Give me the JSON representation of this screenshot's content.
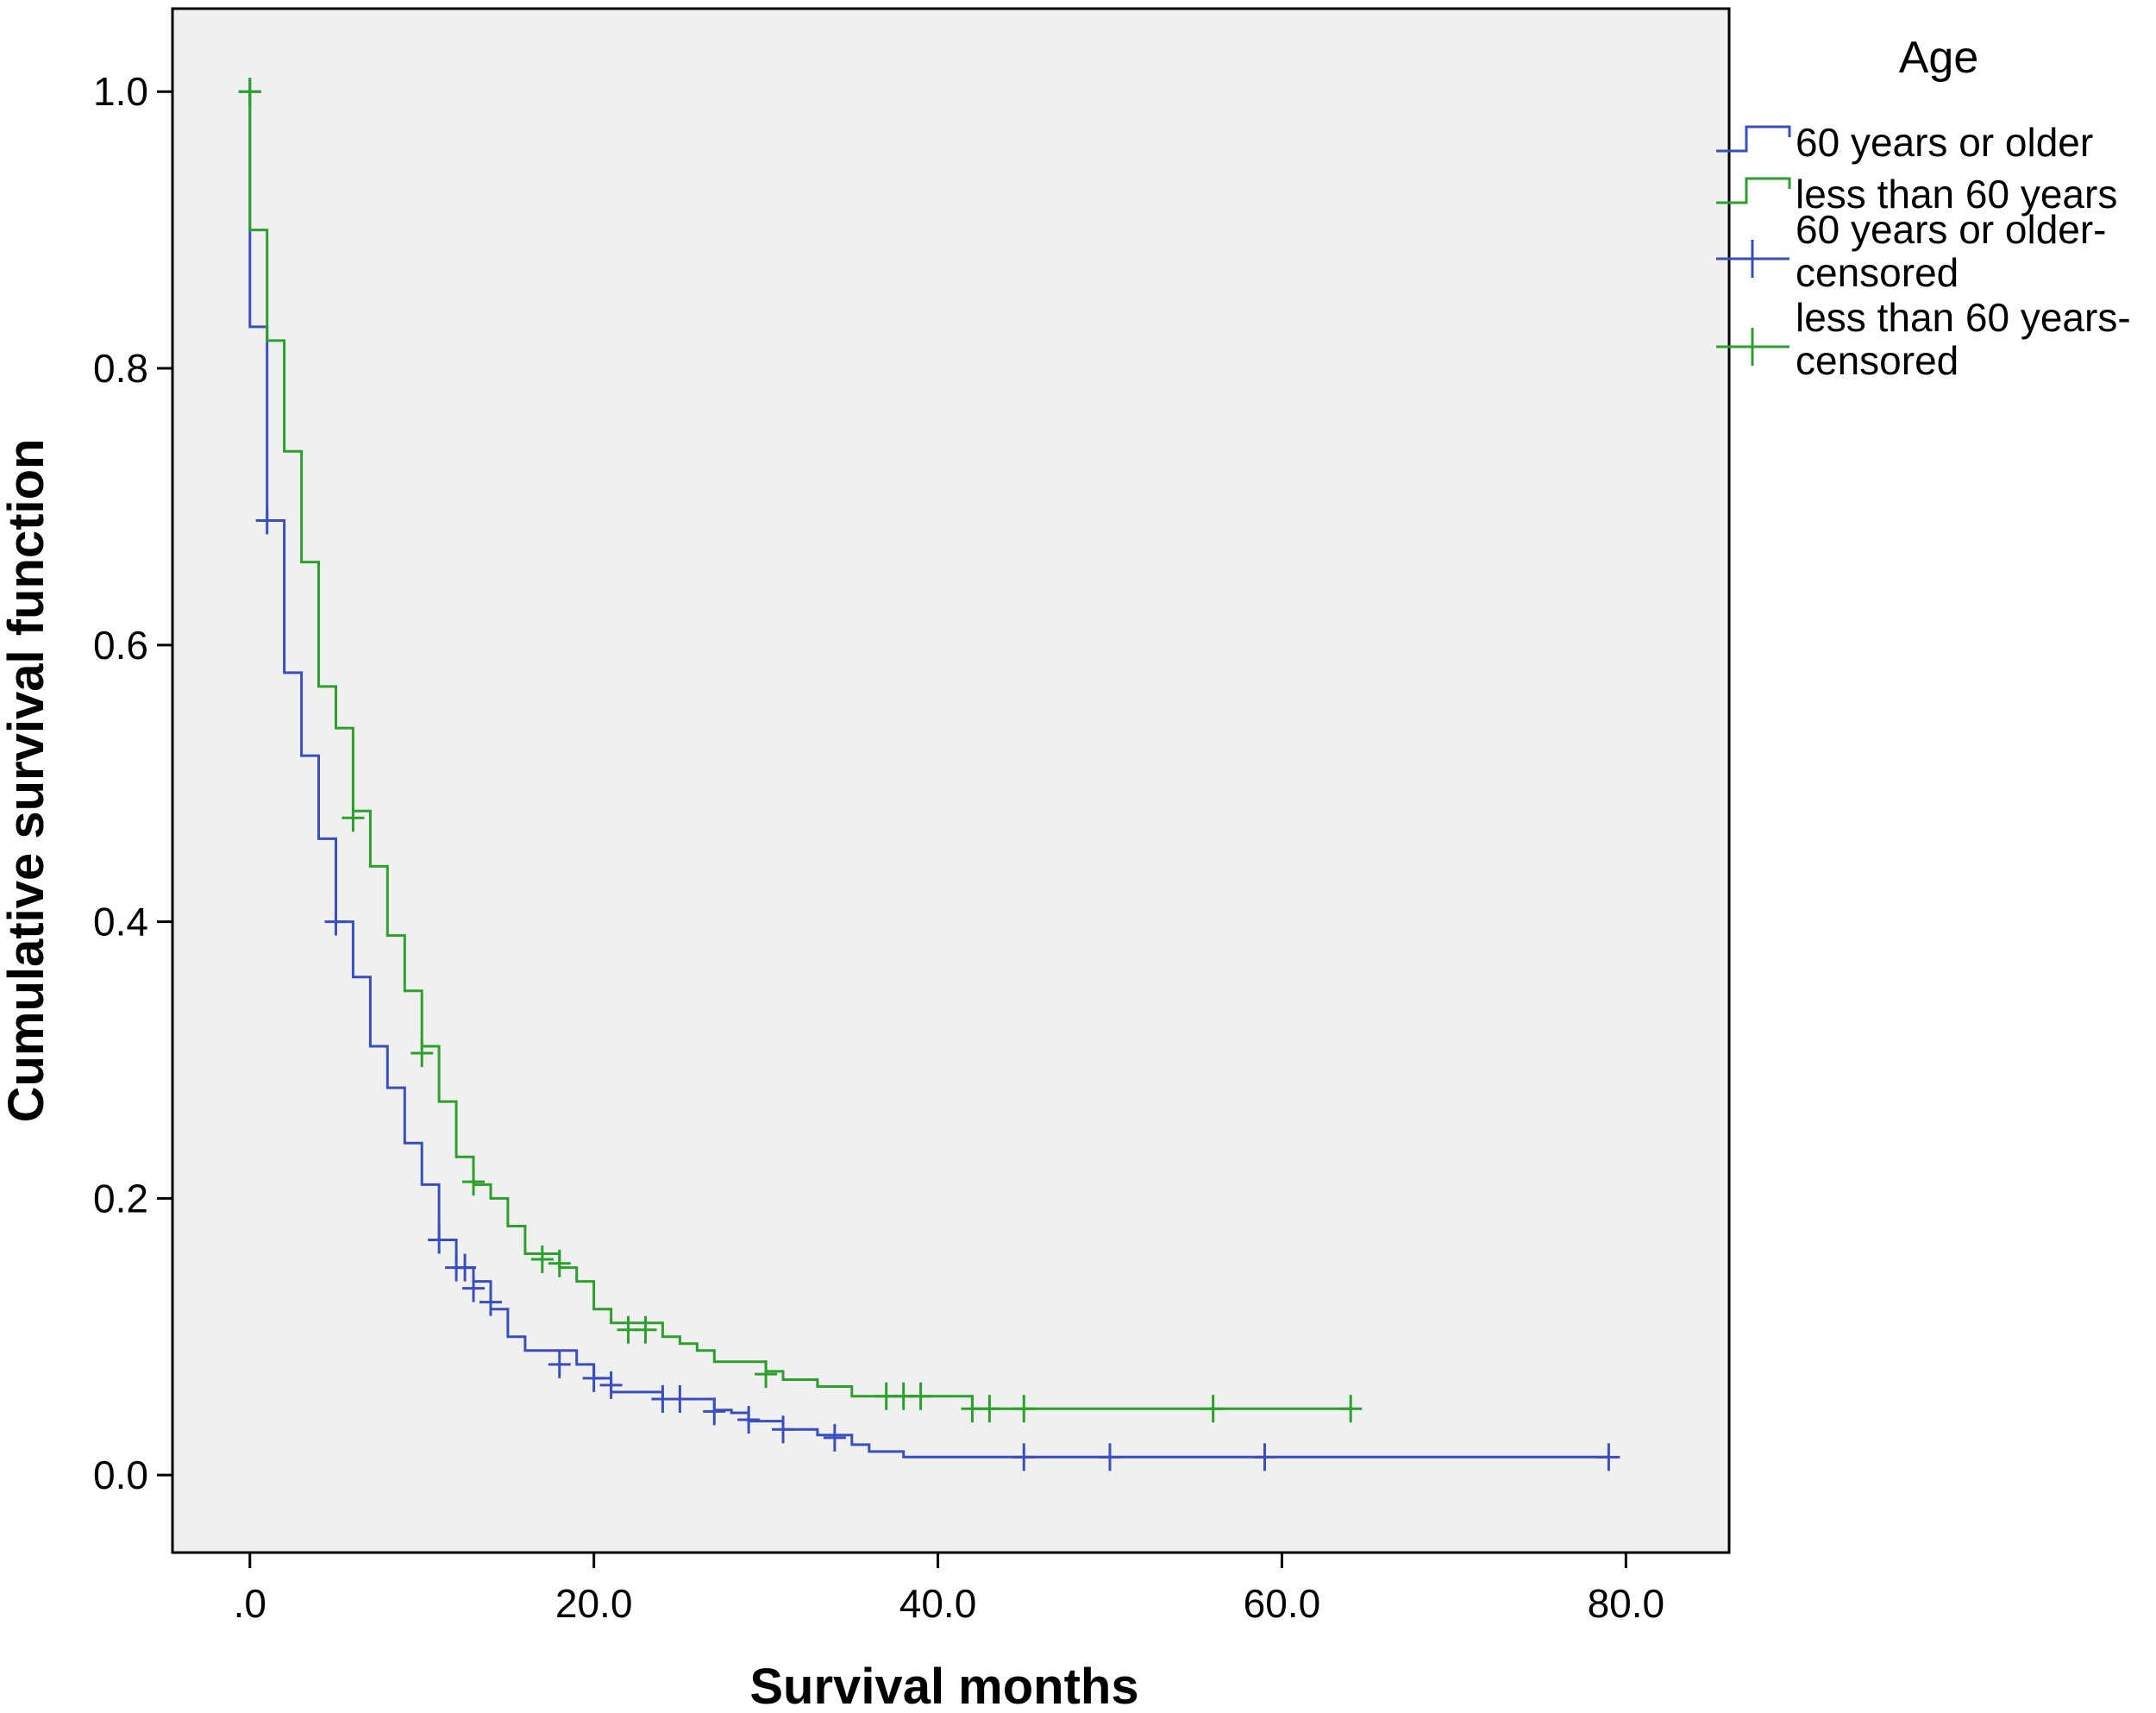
{
  "chart_data": {
    "type": "line",
    "subtype": "kaplan-meier step",
    "title": "",
    "xlabel": "Survival months",
    "ylabel": "Cumulative survival function",
    "xlim": [
      -4.5,
      86
    ],
    "ylim": [
      -0.056,
      1.06
    ],
    "x_ticks": [
      0,
      20,
      40,
      60,
      80
    ],
    "x_tick_labels": [
      ".0",
      "20.0",
      "40.0",
      "60.0",
      "80.0"
    ],
    "y_ticks": [
      0,
      0.2,
      0.4,
      0.6,
      0.8,
      1.0
    ],
    "y_tick_labels": [
      "0.0",
      "0.2",
      "0.4",
      "0.6",
      "0.8",
      "1.0"
    ],
    "legend": {
      "title": "Age",
      "position": "right-outside",
      "entries": [
        {
          "label": "60 years or older",
          "kind": "line",
          "color": "#3a4fbf"
        },
        {
          "label": "less than 60 years",
          "kind": "line",
          "color": "#2ca02c"
        },
        {
          "label_lines": [
            "60 years or older-",
            "censored"
          ],
          "kind": "censor",
          "color": "#3a4fbf"
        },
        {
          "label_lines": [
            "less than 60 years-",
            "censored"
          ],
          "kind": "censor",
          "color": "#2ca02c"
        }
      ]
    },
    "series": [
      {
        "name": "60 years or older",
        "color": "#3a4fbf",
        "steps": [
          [
            0,
            1.0
          ],
          [
            0,
            0.83
          ],
          [
            1,
            0.69
          ],
          [
            2,
            0.58
          ],
          [
            3,
            0.52
          ],
          [
            4,
            0.46
          ],
          [
            5,
            0.4
          ],
          [
            6,
            0.36
          ],
          [
            7,
            0.31
          ],
          [
            8,
            0.28
          ],
          [
            9,
            0.24
          ],
          [
            10,
            0.21
          ],
          [
            11,
            0.17
          ],
          [
            12,
            0.15
          ],
          [
            13,
            0.14
          ],
          [
            14,
            0.12
          ],
          [
            15,
            0.1
          ],
          [
            16,
            0.09
          ],
          [
            19,
            0.08
          ],
          [
            20,
            0.07
          ],
          [
            21,
            0.06
          ],
          [
            23,
            0.06
          ],
          [
            24,
            0.055
          ],
          [
            27,
            0.047
          ],
          [
            28,
            0.045
          ],
          [
            29,
            0.039
          ],
          [
            31,
            0.033
          ],
          [
            33,
            0.029
          ],
          [
            35,
            0.022
          ],
          [
            36,
            0.017
          ],
          [
            38,
            0.013
          ]
        ],
        "end_x": 79,
        "censored": [
          [
            0,
            1.0
          ],
          [
            1,
            0.69
          ],
          [
            5,
            0.4
          ],
          [
            11,
            0.17
          ],
          [
            12,
            0.15
          ],
          [
            12.5,
            0.15
          ],
          [
            13,
            0.135
          ],
          [
            14,
            0.125
          ],
          [
            18,
            0.08
          ],
          [
            20,
            0.07
          ],
          [
            21,
            0.065
          ],
          [
            24,
            0.055
          ],
          [
            25,
            0.055
          ],
          [
            27,
            0.046
          ],
          [
            29,
            0.04
          ],
          [
            31,
            0.033
          ],
          [
            34,
            0.027
          ],
          [
            45,
            0.013
          ],
          [
            50,
            0.013
          ],
          [
            59,
            0.013
          ],
          [
            79,
            0.013
          ]
        ]
      },
      {
        "name": "less than 60 years",
        "color": "#2ca02c",
        "steps": [
          [
            0,
            1.0
          ],
          [
            0,
            0.9
          ],
          [
            1,
            0.82
          ],
          [
            2,
            0.74
          ],
          [
            3,
            0.66
          ],
          [
            4,
            0.57
          ],
          [
            5,
            0.54
          ],
          [
            6,
            0.48
          ],
          [
            7,
            0.44
          ],
          [
            8,
            0.39
          ],
          [
            9,
            0.35
          ],
          [
            10,
            0.31
          ],
          [
            11,
            0.27
          ],
          [
            12,
            0.23
          ],
          [
            13,
            0.21
          ],
          [
            14,
            0.2
          ],
          [
            15,
            0.18
          ],
          [
            16,
            0.16
          ],
          [
            18,
            0.15
          ],
          [
            19,
            0.14
          ],
          [
            20,
            0.12
          ],
          [
            21,
            0.11
          ],
          [
            24,
            0.1
          ],
          [
            25,
            0.095
          ],
          [
            26,
            0.09
          ],
          [
            27,
            0.082
          ],
          [
            30,
            0.075
          ],
          [
            31,
            0.069
          ],
          [
            33,
            0.064
          ],
          [
            35,
            0.057
          ],
          [
            42,
            0.048
          ]
        ],
        "end_x": 64,
        "censored": [
          [
            0,
            1.0
          ],
          [
            6,
            0.475
          ],
          [
            10,
            0.305
          ],
          [
            13,
            0.212
          ],
          [
            17,
            0.156
          ],
          [
            18,
            0.153
          ],
          [
            22,
            0.105
          ],
          [
            23,
            0.105
          ],
          [
            30,
            0.073
          ],
          [
            37,
            0.057
          ],
          [
            38,
            0.057
          ],
          [
            39,
            0.057
          ],
          [
            42,
            0.048
          ],
          [
            43,
            0.048
          ],
          [
            45,
            0.048
          ],
          [
            56,
            0.048
          ],
          [
            64,
            0.048
          ]
        ]
      }
    ]
  }
}
